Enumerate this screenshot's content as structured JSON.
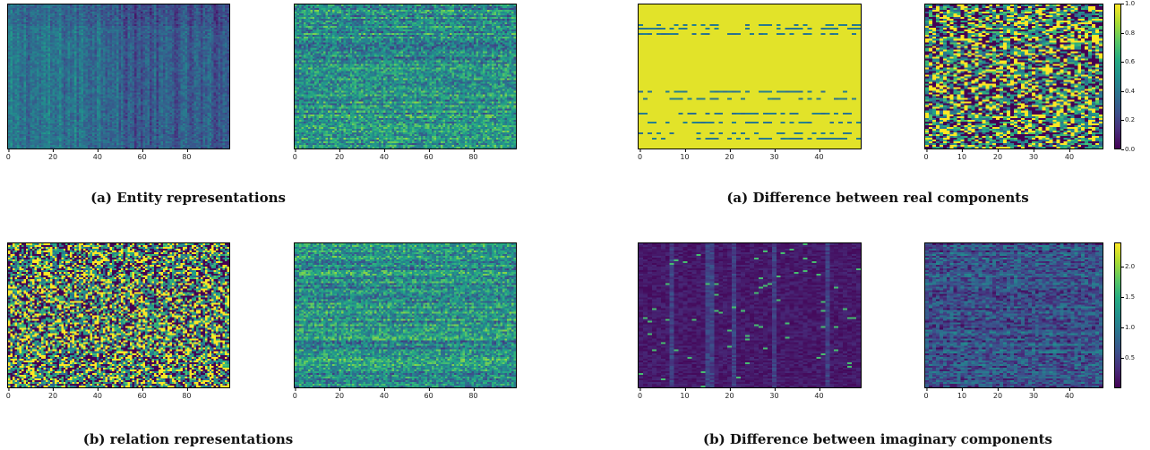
{
  "captions": {
    "entity": "(a) Entity representations",
    "relation": "(b) relation representations",
    "real": "(a) Difference between real components",
    "imag": "(b) Difference between imaginary components"
  },
  "chart_data": [
    {
      "type": "heatmap",
      "id": "entity-left",
      "xticks": [
        "0",
        "20",
        "40",
        "60",
        "80"
      ],
      "xlim": [
        0,
        99
      ],
      "colormap": "viridis",
      "pattern": "entity-bands"
    },
    {
      "type": "heatmap",
      "id": "entity-right",
      "xticks": [
        "0",
        "20",
        "40",
        "60",
        "80"
      ],
      "xlim": [
        0,
        99
      ],
      "colormap": "viridis",
      "pattern": "noise-mid"
    },
    {
      "type": "heatmap",
      "id": "real-left",
      "xticks": [
        "0",
        "10",
        "20",
        "30",
        "40"
      ],
      "xlim": [
        0,
        49
      ],
      "colormap": "viridis",
      "pattern": "mostly-one"
    },
    {
      "type": "heatmap",
      "id": "real-right",
      "xticks": [
        "0",
        "10",
        "20",
        "30",
        "40"
      ],
      "xlim": [
        0,
        49
      ],
      "colormap": "viridis",
      "pattern": "noise-full",
      "colorbar": {
        "ticks": [
          "0.0",
          "0.2",
          "0.4",
          "0.6",
          "0.8",
          "1.0"
        ],
        "range": [
          0.0,
          1.0
        ]
      }
    },
    {
      "type": "heatmap",
      "id": "relation-left",
      "xticks": [
        "0",
        "20",
        "40",
        "60",
        "80"
      ],
      "xlim": [
        0,
        99
      ],
      "colormap": "viridis",
      "pattern": "noise-full"
    },
    {
      "type": "heatmap",
      "id": "relation-right",
      "xticks": [
        "0",
        "20",
        "40",
        "60",
        "80"
      ],
      "xlim": [
        0,
        99
      ],
      "colormap": "viridis",
      "pattern": "noise-mid"
    },
    {
      "type": "heatmap",
      "id": "imag-left",
      "xticks": [
        "0",
        "10",
        "20",
        "30",
        "40"
      ],
      "xlim": [
        0,
        49
      ],
      "colormap": "viridis",
      "pattern": "mostly-low"
    },
    {
      "type": "heatmap",
      "id": "imag-right",
      "xticks": [
        "0",
        "10",
        "20",
        "30",
        "40"
      ],
      "xlim": [
        0,
        49
      ],
      "colormap": "viridis",
      "pattern": "noise-low",
      "colorbar": {
        "ticks": [
          "0.5",
          "1.0",
          "1.5",
          "2.0"
        ],
        "range": [
          0.0,
          2.4
        ]
      }
    }
  ]
}
